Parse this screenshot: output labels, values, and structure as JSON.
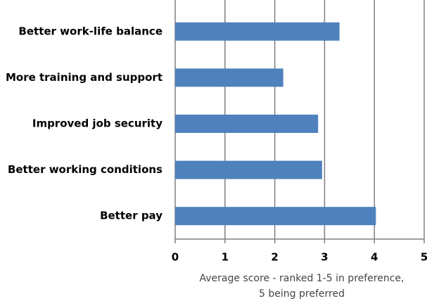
{
  "chart_data": {
    "type": "hbar",
    "categories": [
      "Better work-life balance",
      "More training and support",
      "Improved job security",
      "Better working conditions",
      "Better pay"
    ],
    "values": [
      3.3,
      2.17,
      2.87,
      2.95,
      4.03
    ],
    "color": "#4f81bd",
    "xlim": [
      0,
      5
    ],
    "xticks": [
      0,
      1,
      2,
      3,
      4,
      5
    ],
    "grid": true,
    "xlabel": [
      "Average score - ranked 1-5  in preference,",
      "5 being preferred"
    ]
  }
}
